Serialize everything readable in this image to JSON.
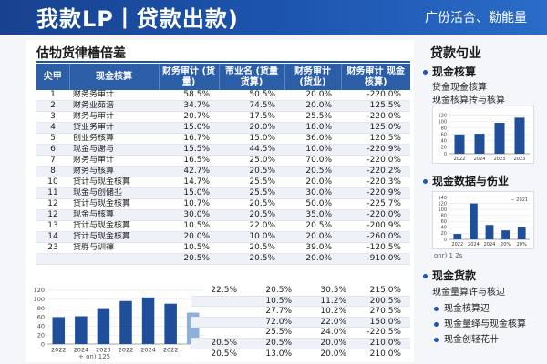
{
  "header": {
    "title": "我款LP丨贷款出款)",
    "right_text": "广份活合、勬能量"
  },
  "left": {
    "section_title": "估牞货律檣倍差",
    "columns": [
      "尖甲",
      "现金核算",
      "财务审计\n(货量)",
      "芾业名\n(货量货算)",
      "财务审计\n(货业)",
      "财务审计\n现金核算)"
    ],
    "rows": [
      [
        "1",
        "财务务审计",
        "58.5%",
        "50.5%",
        "20.0%",
        "-220.0%"
      ],
      [
        "2",
        "财务业茹涪",
        "34.7%",
        "74.5%",
        "20.0%",
        "125.5%"
      ],
      [
        "3",
        "财务与审计",
        "20.7%",
        "17.5%",
        "25.5%",
        "-220.0%"
      ],
      [
        "4",
        "贷业务审计",
        "15.0%",
        "20.0%",
        "18.0%",
        "125.0%"
      ],
      [
        "5",
        "刨业务核算",
        "16.7%",
        "15.0%",
        "36.0%",
        "120.5%"
      ],
      [
        "6",
        "现金与谢与",
        "15.5%",
        "44.5%",
        "10.0%",
        "-220.9%"
      ],
      [
        "7",
        "财务与审计",
        "16.5%",
        "25.0%",
        "70.0%",
        "-220.0%"
      ],
      [
        "8",
        "财务与核算",
        "42.7%",
        "20.5%",
        "20.5%",
        "-220.2%"
      ],
      [
        "10",
        "贷计与现金核算",
        "14.7%",
        "25.5%",
        "20.0%",
        "-220.3%"
      ],
      [
        "11",
        "现金与创储丠",
        "15.0%",
        "25.5%",
        "30.0%",
        "-220.9%"
      ],
      [
        "12",
        "贷计与现金核算",
        "10.7%",
        "20.5%",
        "50.0%",
        "-225.7%"
      ],
      [
        "12",
        "现金与核算",
        "30.0%",
        "20.5%",
        "35.0%",
        "-220.0%"
      ],
      [
        "13",
        "贷计与现金核算",
        "10.5%",
        "22.0%",
        "20.5%",
        "-200.9%"
      ],
      [
        "14",
        "贷计与现金核算",
        "20.0%",
        "10.0%",
        "20.0%",
        "-260.0%"
      ],
      [
        "23",
        "贷艀与训禪",
        "10.5%",
        "20.5%",
        "39.0%",
        "-120.5%"
      ],
      [
        "",
        "",
        "20.5%",
        "20.5%",
        "20.0%",
        "-910.0%"
      ]
    ],
    "extra_rows": [
      [
        "22.5%",
        "20.5%",
        "30.5%",
        "215.0%"
      ],
      [
        "",
        "10.5%",
        "11.2%",
        "200.5%"
      ],
      [
        "",
        "27.7%",
        "10.2%",
        "270.5%"
      ],
      [
        "",
        "72.0%",
        "22.0%",
        "150.0%"
      ],
      [
        "",
        "25.5%",
        "24.0%",
        "-220.5%"
      ],
      [
        "20.5%",
        "20.5%",
        "20.0%",
        "210.0%"
      ],
      [
        "20.5%",
        "13.0%",
        "20.0%",
        "210.0%"
      ]
    ],
    "mini_chart_legend": "+ on) 125"
  },
  "chart_data": [
    {
      "type": "bar",
      "categories": [
        "2022",
        "2024",
        "2023",
        "2022",
        "2024",
        "2022",
        ""
      ],
      "values": [
        60,
        62,
        78,
        96,
        104,
        90,
        70
      ],
      "ylim": [
        0,
        130
      ],
      "yticks": [
        0,
        20,
        40,
        60,
        80,
        100,
        120
      ],
      "title": "",
      "xlabel": "",
      "ylabel": ""
    },
    {
      "type": "bar",
      "categories": [
        "2022",
        "2024",
        "2023",
        "2023"
      ],
      "values": [
        60,
        62,
        96,
        112
      ],
      "ylim": [
        0,
        130
      ],
      "yticks": [
        0,
        20,
        40,
        60,
        80,
        100,
        120
      ],
      "title": "",
      "xlabel": "",
      "ylabel": ""
    },
    {
      "type": "bar",
      "categories": [
        "2022",
        "2024",
        "2024",
        "20%",
        "20%"
      ],
      "values": [
        18,
        120,
        48,
        30,
        40
      ],
      "ylim": [
        0,
        140
      ],
      "yticks": [
        0,
        20,
        40,
        60,
        80,
        100,
        120,
        140
      ],
      "legend": "— 2021",
      "title": "",
      "xlabel": "",
      "ylabel": ""
    }
  ],
  "right": {
    "title": "贷款句业",
    "h1": "现金核算",
    "h1_sub1": "贷金现金核算",
    "h1_sub2": "现金核算抟与核算",
    "h2": "现金数据与伤业",
    "foot2": "onr) 1 2s",
    "h3": "现金货款",
    "h3_sub": "现金量算许与核辺",
    "bullets": [
      "现金核算辺",
      "现金量绎与现金核算",
      "现金创轻花卄"
    ]
  },
  "colors": {
    "banner": "#1d56b0",
    "table_header": "#2c5ea8",
    "bar": "#1f4f9a",
    "bar_light": "#8fb0dc"
  }
}
